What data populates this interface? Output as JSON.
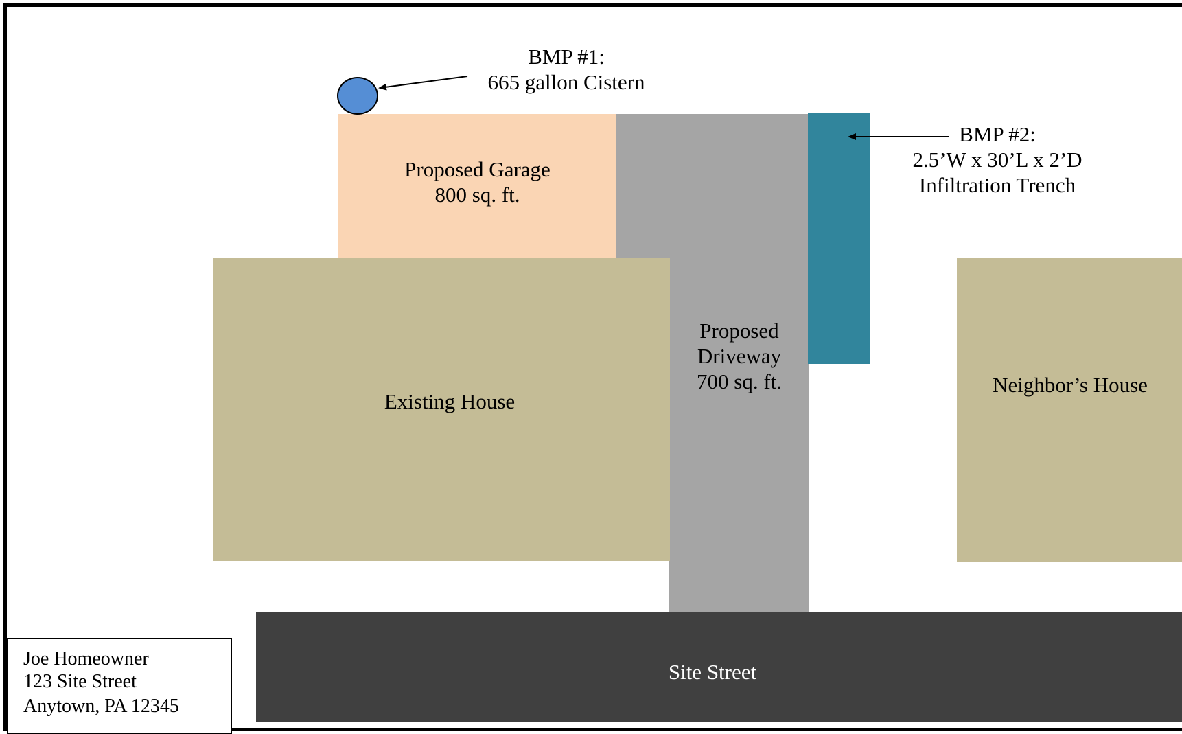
{
  "bmp1": {
    "title": "BMP #1:",
    "description": "665 gallon Cistern"
  },
  "bmp2": {
    "title": "BMP #2:",
    "dimensions": "2.5’W x 30’L x 2’D",
    "description": "Infiltration Trench"
  },
  "garage": {
    "name": "Proposed Garage",
    "area": "800 sq. ft."
  },
  "driveway": {
    "line1": "Proposed",
    "line2": "Driveway",
    "area": "700 sq. ft."
  },
  "existing_house": "Existing House",
  "neighbor_house": "Neighbor’s House",
  "street": "Site Street",
  "owner": {
    "name": "Joe Homeowner",
    "street": "123 Site Street",
    "city": "Anytown, PA 12345"
  },
  "colors": {
    "garage": "#fad5b4",
    "driveway": "#a5a5a5",
    "house": "#c4bc96",
    "trench": "#31859c",
    "street": "#404040",
    "cistern": "#558ed5"
  }
}
